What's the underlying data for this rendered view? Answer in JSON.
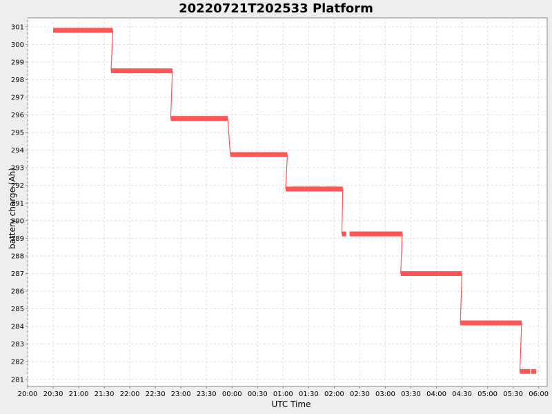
{
  "chart_data": {
    "type": "line",
    "title": "20220721T202533 Platform",
    "xlabel": "UTC Time",
    "ylabel": "battery charge (Ah)",
    "x_ticks": [
      "20:00",
      "20:30",
      "21:00",
      "21:30",
      "22:00",
      "22:30",
      "23:00",
      "23:30",
      "00:00",
      "00:30",
      "01:00",
      "01:30",
      "02:00",
      "02:30",
      "03:00",
      "03:30",
      "04:00",
      "04:30",
      "05:00",
      "05:30",
      "06:00"
    ],
    "y_ticks": [
      "281",
      "282",
      "283",
      "284",
      "285",
      "286",
      "287",
      "288",
      "289",
      "290",
      "291",
      "292",
      "293",
      "294",
      "295",
      "296",
      "297",
      "298",
      "299",
      "300",
      "301"
    ],
    "xlim": [
      "20:00",
      "06:10"
    ],
    "ylim": [
      280.6,
      301.5
    ],
    "grid": true,
    "legend": "none",
    "color": "#ff5555",
    "series": [
      {
        "points": [
          [
            "20:30",
            300.8
          ],
          [
            "21:40",
            300.8
          ],
          [
            "21:38",
            298.5
          ],
          [
            "22:50",
            298.5
          ],
          [
            "22:48",
            295.8
          ],
          [
            "23:55",
            295.8
          ],
          [
            "23:58",
            293.75
          ],
          [
            "01:05",
            293.75
          ],
          [
            "01:03",
            291.8
          ],
          [
            "02:10",
            291.8
          ],
          [
            "02:09",
            289.25
          ],
          [
            "02:14",
            289.25
          ],
          null,
          [
            "02:18",
            289.25
          ],
          [
            "03:20",
            289.25
          ],
          [
            "03:18",
            287.0
          ],
          [
            "04:30",
            287.0
          ],
          [
            "04:28",
            284.2
          ],
          [
            "05:40",
            284.2
          ],
          [
            "05:38",
            281.45
          ],
          [
            "05:50",
            281.45
          ],
          null,
          [
            "05:51",
            281.45
          ],
          [
            "05:57",
            281.45
          ]
        ]
      }
    ]
  }
}
